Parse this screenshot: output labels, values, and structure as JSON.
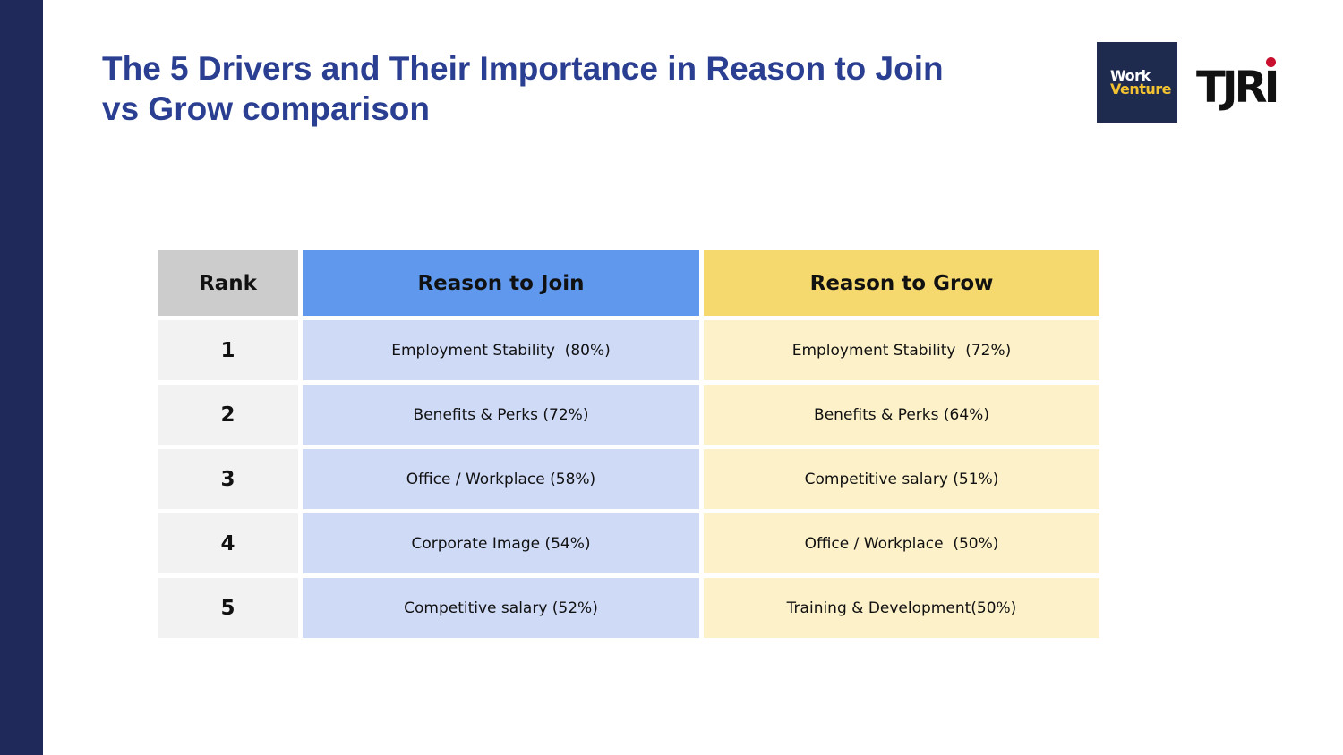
{
  "slide": {
    "title_line1": "The 5 Drivers and Their Importance in Reason to Join",
    "title_line2": "vs Grow comparison",
    "logo_workventure_line1": "Work",
    "logo_workventure_line2": "Venture",
    "logo_tjri_text": "TJRI",
    "colors": {
      "title": "#2a3f91",
      "sidebar": "#1f2a5a",
      "rank_header": "#cccccc",
      "join_header": "#5f98ec",
      "grow_header": "#f5d96f",
      "rank_cell": "#f2f2f2",
      "join_cell": "#cfdaf7",
      "grow_cell": "#fcf1c9"
    }
  },
  "table": {
    "headers": {
      "rank": "Rank",
      "join": "Reason to Join",
      "grow": "Reason to Grow"
    },
    "rows": [
      {
        "rank": "1",
        "join": "Employment Stability  (80%)",
        "grow": "Employment Stability  (72%)"
      },
      {
        "rank": "2",
        "join": "Benefits & Perks (72%)",
        "grow": "Benefits & Perks (64%)"
      },
      {
        "rank": "3",
        "join": "Office / Workplace (58%)",
        "grow": "Competitive salary (51%)"
      },
      {
        "rank": "4",
        "join": "Corporate Image (54%)",
        "grow": "Office / Workplace  (50%)"
      },
      {
        "rank": "5",
        "join": "Competitive salary (52%)",
        "grow": "Training & Development(50%)"
      }
    ]
  }
}
